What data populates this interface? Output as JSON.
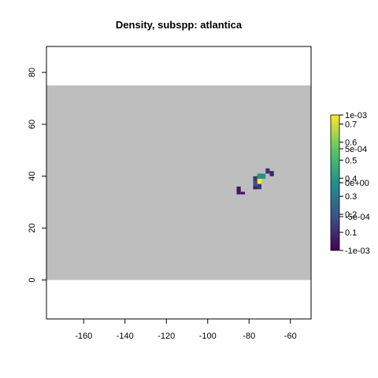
{
  "chart_data": {
    "type": "heatmap",
    "title": "Density, subspp: atlantica",
    "xlabel": "",
    "ylabel": "",
    "xlim": [
      -178,
      -50
    ],
    "ylim": [
      -15,
      90
    ],
    "x_ticks": [
      -160,
      -140,
      -120,
      -100,
      -80,
      -60
    ],
    "x_tick_labels": [
      "-160",
      "-140",
      "-120",
      "-100",
      "-80",
      "-60"
    ],
    "y_ticks": [
      0,
      20,
      40,
      60,
      80
    ],
    "y_tick_labels": [
      "0",
      "20",
      "40",
      "60",
      "80"
    ],
    "grid": false,
    "raster_extent": {
      "x": [
        -178,
        -50
      ],
      "y": [
        0,
        75
      ]
    },
    "background_color": "#bebebe",
    "cells": [
      {
        "x": [
          -72,
          -70
        ],
        "y": [
          41,
          43
        ],
        "value": 0.1
      },
      {
        "x": [
          -70,
          -68
        ],
        "y": [
          40,
          42
        ],
        "value": 0.08
      },
      {
        "x": [
          -76,
          -72
        ],
        "y": [
          39,
          41
        ],
        "value": 0.38
      },
      {
        "x": [
          -78,
          -76
        ],
        "y": [
          38,
          40
        ],
        "value": 0.12
      },
      {
        "x": [
          -76,
          -74
        ],
        "y": [
          37,
          39
        ],
        "value": 0.75
      },
      {
        "x": [
          -78,
          -76
        ],
        "y": [
          35,
          38
        ],
        "value": 0.18
      },
      {
        "x": [
          -76,
          -74
        ],
        "y": [
          35,
          37
        ],
        "value": 0.12
      },
      {
        "x": [
          -78,
          -76
        ],
        "y": [
          35,
          36
        ],
        "value": 0.05
      },
      {
        "x": [
          -86,
          -84
        ],
        "y": [
          33,
          36
        ],
        "value": 0.05
      },
      {
        "x": [
          -84,
          -82
        ],
        "y": [
          33,
          34
        ],
        "value": 0.05
      }
    ],
    "colorbars": [
      {
        "range": [
          0,
          0.75
        ],
        "ticks": [
          0.1,
          0.2,
          0.3,
          0.4,
          0.5,
          0.6,
          0.7
        ],
        "tick_labels": [
          "0.1",
          "0.2",
          "0.3",
          "0.4",
          "0.5",
          "0.6",
          "0.7"
        ]
      },
      {
        "range": [
          -0.001,
          0.001
        ],
        "ticks": [
          -0.001,
          -0.0005,
          0,
          0.0005,
          0.001
        ],
        "tick_labels": [
          "-1e-03",
          "-5e-04",
          "0e+00",
          "5e-04",
          "1e-03"
        ]
      }
    ],
    "colormap": [
      "#440154",
      "#3b528b",
      "#21908c",
      "#5dc863",
      "#fde725"
    ]
  }
}
